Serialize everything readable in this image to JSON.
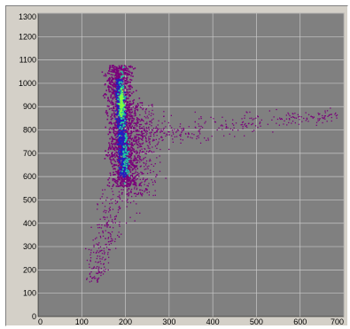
{
  "chart_data": {
    "type": "heatmap",
    "title": "",
    "xlabel": "",
    "ylabel": "",
    "xlim": [
      0,
      700
    ],
    "ylim": [
      0,
      1300
    ],
    "x_ticks": [
      0,
      100,
      200,
      300,
      400,
      500,
      600,
      700
    ],
    "y_ticks": [
      0,
      100,
      200,
      300,
      400,
      500,
      600,
      700,
      800,
      900,
      1000,
      1100,
      1200,
      1300
    ],
    "x_tick_labels": [
      "0",
      "100",
      "200",
      "300",
      "400",
      "500",
      "600",
      "700"
    ],
    "y_tick_labels": [
      "0",
      "100",
      "200",
      "300",
      "400",
      "500",
      "600",
      "700",
      "800",
      "900",
      "1000",
      "1100",
      "1200",
      "1300"
    ],
    "grid": true,
    "colors": {
      "background": "#808080",
      "grid": "#c8c8c8",
      "low": "#7a007a",
      "mid": "#2020c0",
      "high": "#20c8a0",
      "peak": "#80ff40"
    },
    "clusters": [
      {
        "name": "core",
        "x_center": 190,
        "x_spread": 12,
        "y_min": 560,
        "y_max": 1080,
        "density": "high"
      },
      {
        "name": "lower-tail",
        "x_center": 170,
        "x_spread": 30,
        "y_min": 150,
        "y_max": 560,
        "density": "low"
      },
      {
        "name": "horizontal-tail",
        "x_min": 220,
        "x_max": 690,
        "y_start": 780,
        "y_end": 870,
        "density": "low"
      },
      {
        "name": "hot-spot-1",
        "x": 190,
        "y": 920,
        "value": "peak"
      },
      {
        "name": "hot-spot-2",
        "x": 200,
        "y": 700,
        "value": "high"
      }
    ]
  }
}
